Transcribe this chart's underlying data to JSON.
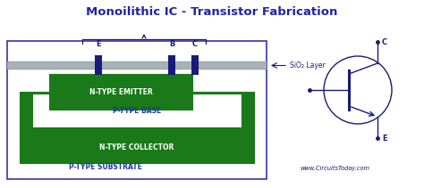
{
  "title": "Monoilithic IC - Transistor Fabrication",
  "title_color": "#2222aa",
  "title_fontsize": 9.5,
  "bg_color": "#ffffff",
  "substrate_color": "#ffffff",
  "substrate_border": "#3333aa",
  "collector_color": "#1a7a1a",
  "base_color": "#ffffff",
  "sio2_color": "#aab0b8",
  "contact_color": "#1a1a7a",
  "text_color_white": "#ffffff",
  "text_color_dark": "#2233aa",
  "website": "www.CircuitsToday.com",
  "sio2_label": "SiO₂ Layer",
  "labels_E_B_C": [
    "E",
    "B",
    "C"
  ],
  "layer_labels": [
    "N-TYPE EMITTER",
    "P-TYPE BASE",
    "N-TYPE COLLECTOR",
    "P-TYPE SUBSTRATE"
  ]
}
